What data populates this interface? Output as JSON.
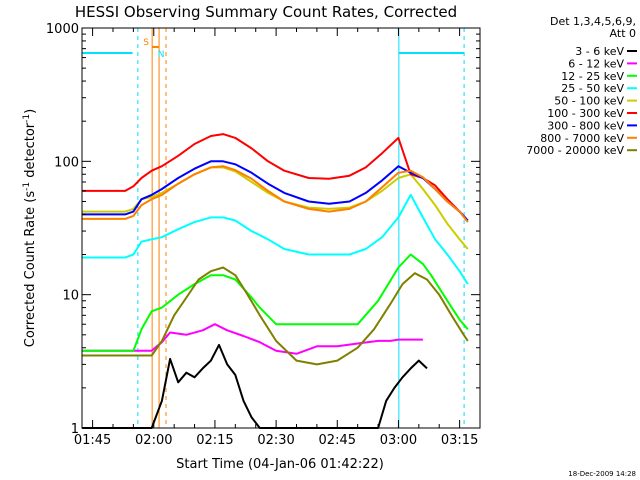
{
  "chart_data": {
    "type": "line",
    "title": "HESSI Observing Summary Count Rates, Corrected",
    "xlabel": "Start Time (04-Jan-06 01:42:22)",
    "ylabel_main": "Corrected Count Rate (s",
    "ylabel_sup1": "-1",
    "ylabel_mid": " detector",
    "ylabel_sup2": "-1",
    "ylabel_end": ")",
    "yscale": "log",
    "ylim": [
      1,
      1000
    ],
    "xlim_min": [
      102.4,
      200
    ],
    "x_unit": "minutes after 00:00 UT",
    "x_ticks": [
      {
        "v": 105,
        "label": "01:45"
      },
      {
        "v": 120,
        "label": "02:00"
      },
      {
        "v": 135,
        "label": "02:15"
      },
      {
        "v": 150,
        "label": "02:30"
      },
      {
        "v": 165,
        "label": "02:45"
      },
      {
        "v": 180,
        "label": "03:00"
      },
      {
        "v": 195,
        "label": "03:15"
      }
    ],
    "y_ticks": [
      {
        "v": 1,
        "label": "1"
      },
      {
        "v": 10,
        "label": "10"
      },
      {
        "v": 100,
        "label": "100"
      },
      {
        "v": 1000,
        "label": "1000"
      }
    ],
    "legend_header": [
      "Det 1,3,4,5,6,9,",
      "Att 0"
    ],
    "legend_placement": "right",
    "timestamp": "18-Dec-2009 14:28",
    "markers": {
      "saa_label": "S",
      "night_label": "N",
      "saa_color": "#ff8000",
      "night_color": "#00e0ff",
      "flags_level": 650,
      "flag_segments": [
        [
          102.4,
          114.8
        ],
        [
          180.1,
          196.2
        ]
      ],
      "night_solid": [
        102.4,
        180.1
      ],
      "night_dashed": [
        116.1,
        196.1
      ],
      "saa_solid": [
        119.6,
        121.3
      ],
      "saa_dashed": [
        123.0
      ],
      "saa_bar": [
        119.6,
        121.3
      ]
    },
    "series": [
      {
        "name": "3 - 6 keV",
        "color": "#000000",
        "x": [
          102.4,
          110,
          118,
          119.5,
          122,
          124,
          126,
          128,
          130,
          132,
          134,
          136,
          138,
          140,
          142,
          144,
          146,
          150,
          160,
          170,
          175,
          177,
          179,
          181,
          183,
          185,
          187
        ],
        "y": [
          1,
          1,
          1,
          1,
          1.6,
          3.3,
          2.2,
          2.6,
          2.4,
          2.8,
          3.2,
          4.2,
          3.0,
          2.5,
          1.6,
          1.2,
          1,
          1,
          1,
          1,
          1,
          1.6,
          2.0,
          2.4,
          2.8,
          3.2,
          2.8
        ]
      },
      {
        "name": "6 - 12 keV",
        "color": "#ff00ff",
        "x": [
          102.4,
          110,
          115,
          117,
          119.5,
          122,
          124,
          128,
          132,
          135,
          138,
          142,
          146,
          150,
          155,
          160,
          165,
          170,
          175,
          178,
          180,
          182,
          186
        ],
        "y": [
          3.8,
          3.8,
          3.8,
          3.8,
          3.8,
          4.4,
          5.2,
          5.0,
          5.4,
          6.0,
          5.4,
          4.9,
          4.4,
          3.8,
          3.6,
          4.1,
          4.1,
          4.3,
          4.5,
          4.5,
          4.6,
          4.6,
          4.6
        ]
      },
      {
        "name": "12 - 25 keV",
        "color": "#00ff00",
        "x": [
          102.4,
          110,
          115,
          117,
          119.5,
          122,
          126,
          130,
          134,
          137,
          140,
          144,
          146,
          150,
          160,
          165,
          170,
          175,
          180,
          183,
          186,
          188,
          192,
          195,
          197
        ],
        "y": [
          3.8,
          3.8,
          3.8,
          5.5,
          7.5,
          8.0,
          10,
          12,
          14,
          14,
          13,
          9.5,
          8,
          6.0,
          6.0,
          6.0,
          6.0,
          9,
          16,
          20,
          17,
          14,
          9,
          6.5,
          5.5
        ]
      },
      {
        "name": "25 - 50 keV",
        "color": "#00ffff",
        "x": [
          102.4,
          108,
          113,
          115,
          117,
          119.5,
          122,
          126,
          130,
          134,
          137,
          140,
          144,
          148,
          152,
          158,
          163,
          168,
          172,
          176,
          180,
          183,
          186,
          189,
          192,
          195,
          197
        ],
        "y": [
          19,
          19,
          19,
          20,
          25,
          26,
          27,
          31,
          35,
          38,
          38,
          36,
          30,
          26,
          22,
          20,
          20,
          20,
          22,
          27,
          38,
          56,
          38,
          26,
          20,
          15,
          12
        ]
      },
      {
        "name": "50 - 100 keV",
        "color": "#cccc00",
        "x": [
          102.4,
          108,
          113,
          115,
          117,
          119.5,
          122,
          126,
          130,
          134,
          137,
          140,
          144,
          148,
          152,
          158,
          163,
          168,
          172,
          176,
          180,
          183,
          186,
          189,
          192,
          195,
          197
        ],
        "y": [
          42,
          42,
          42,
          44,
          52,
          54,
          58,
          68,
          80,
          90,
          90,
          84,
          70,
          58,
          50,
          45,
          44,
          45,
          50,
          60,
          75,
          80,
          62,
          47,
          34,
          26,
          22
        ]
      },
      {
        "name": "100 - 300 keV",
        "color": "#ff0000",
        "x": [
          102.4,
          108,
          113,
          115,
          117,
          119.5,
          122,
          126,
          130,
          134,
          137,
          140,
          144,
          148,
          152,
          158,
          163,
          168,
          172,
          176,
          180,
          183,
          186,
          189,
          192,
          195,
          197
        ],
        "y": [
          60,
          60,
          60,
          65,
          75,
          85,
          92,
          110,
          135,
          155,
          160,
          150,
          125,
          100,
          85,
          75,
          74,
          78,
          90,
          115,
          150,
          80,
          75,
          66,
          52,
          42,
          36
        ]
      },
      {
        "name": "300 - 800 keV",
        "color": "#0000ff",
        "x": [
          102.4,
          108,
          113,
          115,
          117,
          119.5,
          122,
          126,
          130,
          134,
          137,
          140,
          144,
          148,
          152,
          158,
          163,
          168,
          172,
          176,
          180,
          183,
          186,
          189,
          192,
          195,
          197
        ],
        "y": [
          40,
          40,
          40,
          42,
          52,
          56,
          62,
          75,
          88,
          100,
          100,
          95,
          82,
          68,
          58,
          50,
          48,
          50,
          58,
          72,
          92,
          82,
          75,
          62,
          50,
          42,
          36
        ]
      },
      {
        "name": "800 - 7000 keV",
        "color": "#ff8000",
        "x": [
          102.4,
          108,
          113,
          115,
          117,
          119.5,
          122,
          126,
          130,
          134,
          137,
          140,
          144,
          148,
          152,
          158,
          163,
          168,
          172,
          176,
          180,
          183,
          186,
          189,
          192,
          195,
          197
        ],
        "y": [
          37,
          37,
          37,
          39,
          47,
          52,
          56,
          68,
          80,
          90,
          92,
          86,
          74,
          60,
          50,
          44,
          42,
          44,
          50,
          64,
          82,
          85,
          76,
          62,
          50,
          42,
          35
        ]
      },
      {
        "name": "7000 - 20000 keV",
        "color": "#808000",
        "x": [
          102.4,
          110,
          119.5,
          122,
          125,
          128,
          131,
          134,
          137,
          140,
          143,
          146,
          150,
          155,
          160,
          165,
          170,
          174,
          178,
          181,
          184,
          187,
          190,
          193,
          196,
          197
        ],
        "y": [
          3.5,
          3.5,
          3.5,
          4.5,
          7,
          9.5,
          13,
          15,
          16,
          14,
          10,
          7,
          4.5,
          3.2,
          3.0,
          3.2,
          4.0,
          5.5,
          8.5,
          12,
          14.5,
          13,
          10,
          7,
          5,
          4.5
        ]
      }
    ]
  }
}
